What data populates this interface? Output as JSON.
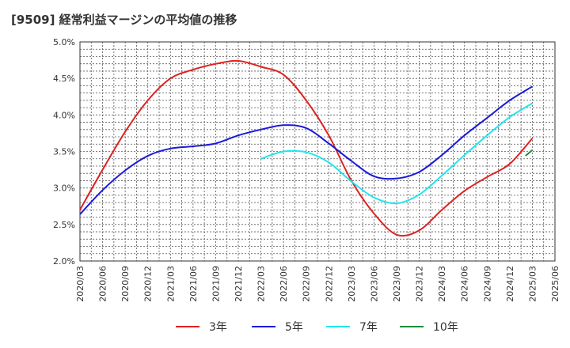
{
  "title": "[9509]  経常利益マージンの平均値の推移",
  "chart_data": {
    "type": "line",
    "title": "[9509]  経常利益マージンの平均値の推移",
    "xlabel": "",
    "ylabel": "",
    "ylim": [
      2.0,
      5.0
    ],
    "yticks": [
      "2.0%",
      "2.5%",
      "3.0%",
      "3.5%",
      "4.0%",
      "4.5%",
      "5.0%"
    ],
    "grid": true,
    "legend_position": "bottom",
    "x_ticks": [
      "2020/03",
      "2020/06",
      "2020/09",
      "2020/12",
      "2021/03",
      "2021/06",
      "2021/09",
      "2021/12",
      "2022/03",
      "2022/06",
      "2022/09",
      "2022/12",
      "2023/03",
      "2023/06",
      "2023/09",
      "2023/12",
      "2024/03",
      "2024/06",
      "2024/09",
      "2024/12",
      "2025/03",
      "2025/06"
    ],
    "series": [
      {
        "name": "3年",
        "color": "#dd2222",
        "start_index": 0,
        "values": [
          2.7,
          3.25,
          3.77,
          4.2,
          4.5,
          4.62,
          4.7,
          4.74,
          4.66,
          4.55,
          4.2,
          3.72,
          3.1,
          2.65,
          2.36,
          2.42,
          2.7,
          2.96,
          3.15,
          3.33,
          3.68
        ]
      },
      {
        "name": "5年",
        "color": "#1a1adb",
        "start_index": 0,
        "values": [
          2.64,
          2.97,
          3.24,
          3.44,
          3.54,
          3.57,
          3.61,
          3.72,
          3.8,
          3.86,
          3.82,
          3.61,
          3.37,
          3.16,
          3.13,
          3.22,
          3.45,
          3.72,
          3.96,
          4.2,
          4.39
        ]
      },
      {
        "name": "7年",
        "color": "#22e5ee",
        "start_index": 8,
        "values": [
          3.4,
          3.5,
          3.49,
          3.35,
          3.09,
          2.87,
          2.79,
          2.91,
          3.17,
          3.45,
          3.72,
          3.97,
          4.16
        ]
      },
      {
        "name": "10年",
        "color": "#1e8c3c",
        "start_index": 19.7,
        "values": [
          3.44,
          3.52
        ]
      }
    ]
  }
}
